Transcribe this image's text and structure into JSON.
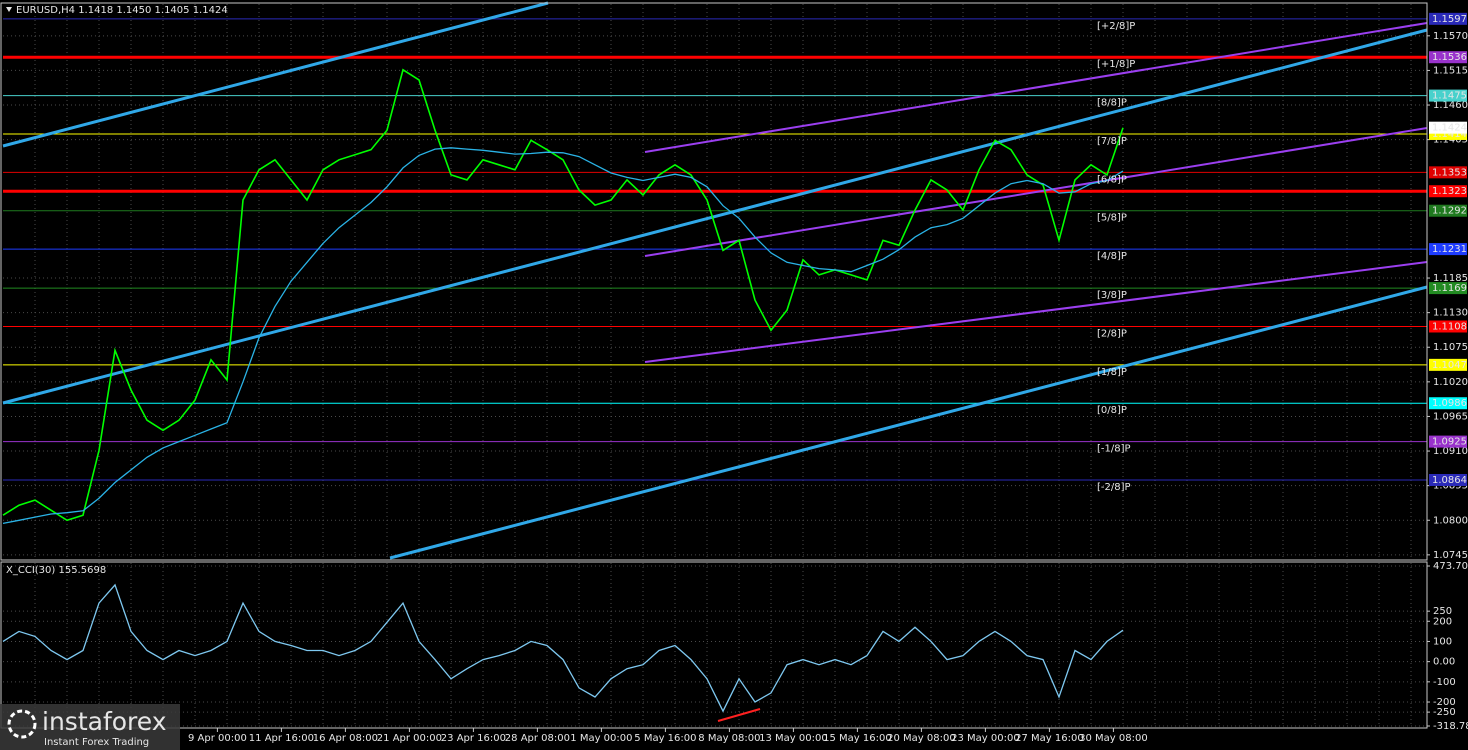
{
  "chart_data": [
    {
      "type": "line",
      "title": "EURUSD,H4  1.1418 1.1450 1.1405 1.1424",
      "xlim": [
        0,
        89
      ],
      "ylim": [
        1.074,
        1.1619
      ],
      "yticks": [
        {
          "value": 1.157,
          "label": "1.1570"
        },
        1.1515,
        {
          "value": 1.146,
          "label": "1.1460"
        },
        1.1405,
        1.1185,
        {
          "value": 1.113,
          "label": "1.1130"
        },
        1.1075,
        {
          "value": 1.102,
          "label": "1.1020"
        },
        1.0965,
        {
          "value": 1.091,
          "label": "1.0910"
        },
        1.0855,
        {
          "value": 1.08,
          "label": "1.0800"
        },
        1.0745
      ],
      "grid": true,
      "series": [
        {
          "color": "#00ff00",
          "values": [
            1.0808,
            1.0824,
            1.0832,
            1.0816,
            1.08,
            1.0808,
            1.0911,
            1.107,
            1.1007,
            1.0959,
            1.0943,
            1.0959,
            1.0991,
            1.1055,
            1.1023,
            1.1309,
            1.1357,
            1.1373,
            1.1341,
            1.1309,
            1.1357,
            1.1373,
            1.1381,
            1.1389,
            1.142,
            1.1516,
            1.15,
            1.142,
            1.1349,
            1.1341,
            1.1373,
            1.1365,
            1.1357,
            1.1404,
            1.1389,
            1.1373,
            1.1325,
            1.1301,
            1.1309,
            1.1341,
            1.1317,
            1.1349,
            1.1365,
            1.1349,
            1.1309,
            1.1229,
            1.1245,
            1.115,
            1.1102,
            1.1134,
            1.1214,
            1.119,
            1.1198,
            1.119,
            1.1182,
            1.1245,
            1.1237,
            1.1293,
            1.1341,
            1.1325,
            1.1293,
            1.1357,
            1.1404,
            1.1389,
            1.1349,
            1.1333,
            1.1245,
            1.1341,
            1.1365,
            1.1349,
            1.1424
          ]
        },
        {
          "color": "#2ab3e6",
          "values": [
            1.0795,
            1.08,
            1.0805,
            1.081,
            1.0812,
            1.0815,
            1.0835,
            1.086,
            1.088,
            1.09,
            1.0915,
            1.0925,
            1.0935,
            1.0945,
            1.0955,
            1.102,
            1.109,
            1.114,
            1.118,
            1.121,
            1.124,
            1.1265,
            1.1285,
            1.1305,
            1.133,
            1.136,
            1.138,
            1.139,
            1.1392,
            1.139,
            1.1388,
            1.1385,
            1.1382,
            1.1383,
            1.1385,
            1.1384,
            1.1378,
            1.1365,
            1.1352,
            1.1345,
            1.134,
            1.1345,
            1.135,
            1.1345,
            1.133,
            1.13,
            1.128,
            1.125,
            1.1225,
            1.121,
            1.1205,
            1.12,
            1.1198,
            1.1195,
            1.1205,
            1.1215,
            1.123,
            1.125,
            1.1265,
            1.127,
            1.128,
            1.13,
            1.132,
            1.1335,
            1.134,
            1.1335,
            1.132,
            1.1322,
            1.1335,
            1.134,
            1.1355
          ]
        }
      ],
      "levels": [
        {
          "label": "[+2/8]P",
          "value": 1.1597,
          "color": "#2a2ab8"
        },
        {
          "label": "[+1/8]P",
          "value": 1.1536,
          "color": "#9932cc"
        },
        {
          "label": "[8/8]P",
          "value": 1.1475,
          "color": "#48d1cc"
        },
        {
          "label": "[7/8]P",
          "value": 1.1414,
          "color": "#ffff00"
        },
        {
          "label": "[6/8]P",
          "value": 1.1353,
          "color": "#e00000"
        },
        {
          "label": "[5/8]P",
          "value": 1.1292,
          "color": "#1f7a1f"
        },
        {
          "label": "[4/8]P",
          "value": 1.1231,
          "color": "#1e3cff"
        },
        {
          "label": "[3/8]P",
          "value": 1.1169,
          "color": "#228b22"
        },
        {
          "label": "[2/8]P",
          "value": 1.1108,
          "color": "#ff0000"
        },
        {
          "label": "[1/8]P",
          "value": 1.1047,
          "color": "#ffff00"
        },
        {
          "label": "[0/8]P",
          "value": 1.0986,
          "color": "#00ffff"
        },
        {
          "label": "[-1/8]P",
          "value": 1.0925,
          "color": "#9932cc"
        },
        {
          "label": "[-2/8]P",
          "value": 1.0864,
          "color": "#2a2ab8"
        }
      ],
      "lines": [
        {
          "value": 1.1536,
          "color": "#ff0000"
        },
        {
          "value": 1.1323,
          "color": "#ff0000"
        }
      ],
      "current_price": 1.1424
    },
    {
      "type": "line",
      "title": "X_CCI(30) 155.5698",
      "xlim": [
        0,
        89
      ],
      "xticks": [
        {
          "value": 13.4,
          "label": "9 Apr 00:00"
        },
        {
          "value": 17.4,
          "label": "11 Apr 16:00"
        },
        {
          "value": 21.4,
          "label": "16 Apr 08:00"
        },
        {
          "value": 25.4,
          "label": "21 Apr 00:00"
        },
        {
          "value": 29.4,
          "label": "23 Apr 16:00"
        },
        {
          "value": 33.4,
          "label": "28 Apr 08:00"
        },
        {
          "value": 37.4,
          "label": "1 May 00:00"
        },
        {
          "value": 41.4,
          "label": "5 May 16:00"
        },
        {
          "value": 45.4,
          "label": "8 May 08:00"
        },
        {
          "value": 49.4,
          "label": "13 May 00:00"
        },
        {
          "value": 53.4,
          "label": "15 May 16:00"
        },
        {
          "value": 57.4,
          "label": "20 May 08:00"
        },
        {
          "value": 61.4,
          "label": "23 May 00:00"
        },
        {
          "value": 65.4,
          "label": "27 May 16:00"
        },
        {
          "value": 69.4,
          "label": "30 May 08:00"
        }
      ],
      "ylim": [
        -318.786,
        473.707
      ],
      "yticks": [
        473.707,
        250,
        200,
        100,
        {
          "value": 0,
          "label": "0.00"
        },
        -100,
        -200,
        -250,
        -318.786
      ],
      "grid": true,
      "series": [
        {
          "color": "#7ec8f0",
          "values": [
            100,
            150,
            125,
            55,
            10,
            55,
            290,
            380,
            150,
            55,
            10,
            55,
            30,
            55,
            100,
            290,
            150,
            100,
            80,
            55,
            55,
            30,
            55,
            100,
            195,
            290,
            100,
            10,
            -85,
            -35,
            10,
            30,
            55,
            100,
            80,
            10,
            -130,
            -175,
            -85,
            -35,
            -15,
            55,
            80,
            10,
            -85,
            -245,
            -85,
            -200,
            -155,
            -15,
            10,
            -15,
            10,
            -15,
            30,
            150,
            100,
            170,
            100,
            10,
            30,
            100,
            150,
            100,
            30,
            10,
            -175,
            55,
            10,
            100,
            155.5698
          ]
        }
      ]
    }
  ],
  "watermark": {
    "brand": "instaforex",
    "tagline": "Instant Forex Trading"
  }
}
